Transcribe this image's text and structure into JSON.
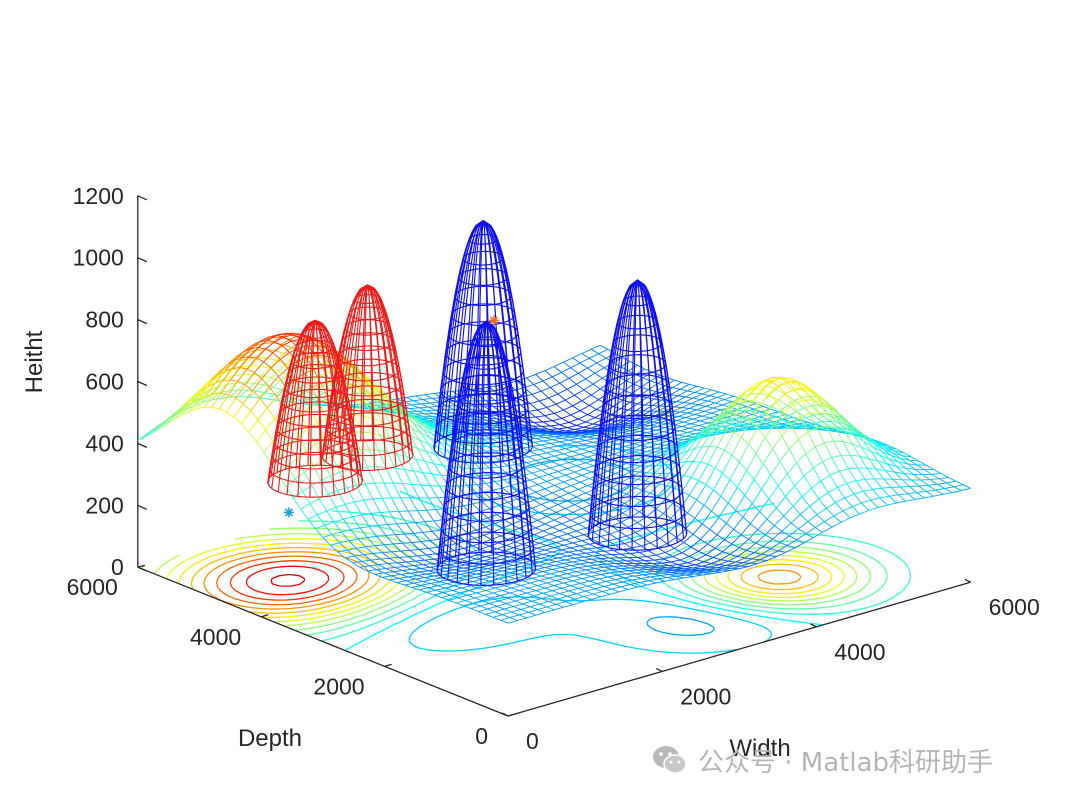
{
  "chart_data": {
    "type": "3d-mesh-contour",
    "zlabel": "Heitht",
    "xlabel": "Width",
    "ylabel": "Depth",
    "xlim": [
      0,
      6000
    ],
    "ylim": [
      0,
      6000
    ],
    "zlim": [
      0,
      1200
    ],
    "x_ticks": [
      "0",
      "2000",
      "4000",
      "6000"
    ],
    "y_ticks": [
      "0",
      "2000",
      "4000",
      "6000"
    ],
    "z_ticks": [
      "0",
      "200",
      "400",
      "600",
      "800",
      "1000",
      "1200"
    ],
    "terrain_base": 300,
    "terrain_peaks": [
      {
        "x": 900,
        "y": 4600,
        "height": 510,
        "spread": 950
      },
      {
        "x": 4600,
        "y": 1400,
        "height": 360,
        "spread": 650
      }
    ],
    "terrain_valleys": [
      {
        "x": 1300,
        "y": 3000,
        "depth": 120,
        "spread": 900
      },
      {
        "x": 3300,
        "y": 1000,
        "depth": 110,
        "spread": 750
      },
      {
        "x": 4900,
        "y": 5100,
        "depth": 120,
        "spread": 700
      }
    ],
    "obstacles": [
      {
        "color": "#ee1c1c",
        "x": 1500,
        "y": 5000,
        "radius": 480,
        "base": 250,
        "top": 770
      },
      {
        "color": "#ee1c1c",
        "x": 2500,
        "y": 5400,
        "radius": 460,
        "base": 230,
        "top": 780
      },
      {
        "color": "#0f0ff0",
        "x": 4000,
        "y": 5400,
        "radius": 500,
        "base": 150,
        "top": 880
      },
      {
        "color": "#0f0ff0",
        "x": 2600,
        "y": 3600,
        "radius": 500,
        "base": 0,
        "top": 800
      },
      {
        "color": "#0f0ff0",
        "x": 4400,
        "y": 3400,
        "radius": 500,
        "base": 0,
        "top": 820
      }
    ],
    "markers": [
      {
        "x": 600,
        "y": 4300,
        "z": 270,
        "color": "#1a9fd0",
        "symbol": "*"
      },
      {
        "x": 4300,
        "y": 5600,
        "z": 520,
        "color": "#f26d21",
        "symbol": "*"
      }
    ]
  },
  "watermark": {
    "text": "公众号 · Matlab科研助手"
  }
}
